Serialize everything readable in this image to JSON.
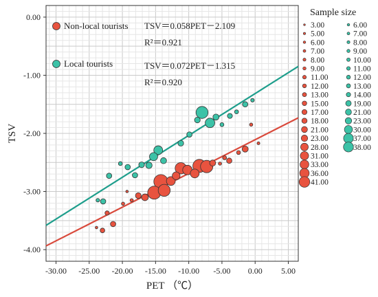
{
  "chart_data": {
    "type": "scatter",
    "xlabel": "PET （℃）",
    "ylabel": "TSV",
    "xlim": [
      -31.5,
      6.5
    ],
    "ylim": [
      -4.2,
      0.2
    ],
    "x_ticks": [
      -30,
      -25,
      -20,
      -15,
      -10,
      -5,
      0,
      5
    ],
    "x_tick_labels": [
      "-30.00",
      "-25.00",
      "-20.00",
      "-15.00",
      "-10.00",
      "-5.00",
      "0.00",
      "5.00"
    ],
    "y_ticks": [
      0,
      -1,
      -2,
      -3,
      -4
    ],
    "y_tick_labels": [
      "0.00",
      "-1.00",
      "-2.00",
      "-3.00",
      "-4.00"
    ],
    "grid": true,
    "colors": {
      "non_local": "#E8533F",
      "local": "#3CC2A7",
      "non_local_line": "#D94A3C",
      "local_line": "#1E9E8C"
    },
    "series": [
      {
        "name": "Non-local tourists",
        "equation": "TSV＝0.058PET－2.109",
        "r2": "R²＝0.921",
        "slope": 0.058,
        "intercept": -2.109,
        "points": [
          {
            "x": -23.9,
            "y": -3.62,
            "n": 3
          },
          {
            "x": -23.0,
            "y": -3.67,
            "n": 9
          },
          {
            "x": -22.3,
            "y": -3.37,
            "n": 8
          },
          {
            "x": -21.4,
            "y": -3.56,
            "n": 11
          },
          {
            "x": -19.9,
            "y": -3.21,
            "n": 5
          },
          {
            "x": -19.3,
            "y": -3.0,
            "n": 3
          },
          {
            "x": -18.6,
            "y": -3.15,
            "n": 5
          },
          {
            "x": -17.6,
            "y": -3.07,
            "n": 12
          },
          {
            "x": -16.6,
            "y": -3.1,
            "n": 15
          },
          {
            "x": -15.2,
            "y": -3.02,
            "n": 33
          },
          {
            "x": -13.7,
            "y": -2.98,
            "n": 30
          },
          {
            "x": -14.2,
            "y": -2.83,
            "n": 36
          },
          {
            "x": -12.7,
            "y": -2.82,
            "n": 21
          },
          {
            "x": -11.9,
            "y": -2.73,
            "n": 18
          },
          {
            "x": -11.2,
            "y": -2.6,
            "n": 28
          },
          {
            "x": -10.2,
            "y": -2.63,
            "n": 23
          },
          {
            "x": -9.1,
            "y": -2.69,
            "n": 21
          },
          {
            "x": -8.4,
            "y": -2.56,
            "n": 33
          },
          {
            "x": -7.3,
            "y": -2.57,
            "n": 31
          },
          {
            "x": -6.4,
            "y": -2.51,
            "n": 13
          },
          {
            "x": -5.3,
            "y": -2.52,
            "n": 5
          },
          {
            "x": -4.6,
            "y": -2.42,
            "n": 7
          },
          {
            "x": -3.9,
            "y": -2.47,
            "n": 11
          },
          {
            "x": -2.5,
            "y": -2.33,
            "n": 7
          },
          {
            "x": -1.5,
            "y": -2.27,
            "n": 13
          },
          {
            "x": -0.6,
            "y": -1.85,
            "n": 5
          },
          {
            "x": 0.5,
            "y": -2.17,
            "n": 4
          }
        ]
      },
      {
        "name": "Local tourists",
        "equation": "TSV＝0.072PET－1.315",
        "r2": "R²＝0.920",
        "slope": 0.072,
        "intercept": -1.315,
        "points": [
          {
            "x": -23.7,
            "y": -3.15,
            "n": 6
          },
          {
            "x": -22.9,
            "y": -3.17,
            "n": 11
          },
          {
            "x": -22.0,
            "y": -2.73,
            "n": 11
          },
          {
            "x": -20.3,
            "y": -2.52,
            "n": 7
          },
          {
            "x": -19.2,
            "y": -2.58,
            "n": 11
          },
          {
            "x": -18.1,
            "y": -2.72,
            "n": 11
          },
          {
            "x": -17.1,
            "y": -2.54,
            "n": 12
          },
          {
            "x": -16.0,
            "y": -2.55,
            "n": 14
          },
          {
            "x": -15.3,
            "y": -2.4,
            "n": 19
          },
          {
            "x": -14.6,
            "y": -2.29,
            "n": 21
          },
          {
            "x": -13.8,
            "y": -2.47,
            "n": 13
          },
          {
            "x": -11.2,
            "y": -2.17,
            "n": 12
          },
          {
            "x": -9.9,
            "y": -2.02,
            "n": 11
          },
          {
            "x": -8.7,
            "y": -1.77,
            "n": 12
          },
          {
            "x": -8.0,
            "y": -1.64,
            "n": 30
          },
          {
            "x": -6.8,
            "y": -1.82,
            "n": 23
          },
          {
            "x": -5.9,
            "y": -1.72,
            "n": 13
          },
          {
            "x": -5.0,
            "y": -1.85,
            "n": 7
          },
          {
            "x": -3.8,
            "y": -1.7,
            "n": 10
          },
          {
            "x": -2.8,
            "y": -1.63,
            "n": 7
          },
          {
            "x": -1.5,
            "y": -1.5,
            "n": 11
          },
          {
            "x": -0.4,
            "y": -1.43,
            "n": 6
          }
        ]
      }
    ],
    "size_legend": {
      "title": "Sample size",
      "non_local": [
        "3.00",
        "5.00",
        "6.00",
        "7.00",
        "8.00",
        "9.00",
        "11.00",
        "12.00",
        "13.00",
        "15.00",
        "17.00",
        "18.00",
        "21.00",
        "23.00",
        "28.00",
        "31.00",
        "33.00",
        "36.00",
        "41.00"
      ],
      "local": [
        "6.00",
        "7.00",
        "8.00",
        "9.00",
        "10.00",
        "11.00",
        "12.00",
        "13.00",
        "14.00",
        "19.00",
        "21.00",
        "23.00",
        "30.00",
        "37.00",
        "38.00"
      ]
    }
  }
}
